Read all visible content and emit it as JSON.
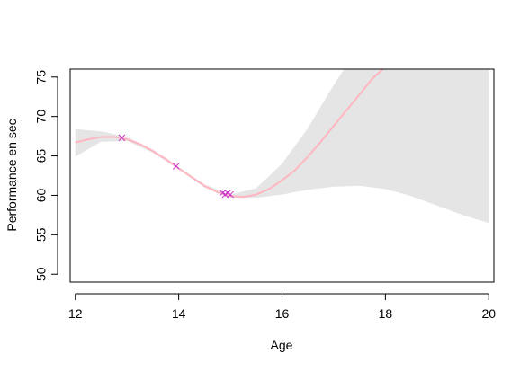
{
  "chart_data": {
    "type": "line",
    "title": "",
    "xlabel": "Age",
    "ylabel": "Performance en sec",
    "xlim": [
      11.9,
      20.1
    ],
    "ylim": [
      49,
      76
    ],
    "x_ticks": [
      12,
      14,
      16,
      18,
      20
    ],
    "y_ticks": [
      50,
      55,
      60,
      65,
      70,
      75
    ],
    "grid": false,
    "legend": "none",
    "colors": {
      "curve": "#ffb6c1",
      "band": "#e5e5e5",
      "points": "#cc33cc"
    },
    "fit_curve": {
      "x": [
        12.0,
        12.25,
        12.5,
        12.75,
        13.0,
        13.25,
        13.5,
        13.75,
        14.0,
        14.25,
        14.5,
        14.75,
        15.0,
        15.25,
        15.5,
        15.75,
        16.0,
        16.25,
        16.5,
        16.75,
        17.0,
        17.25,
        17.5,
        17.75,
        18.0,
        18.1
      ],
      "y": [
        66.7,
        67.1,
        67.4,
        67.4,
        67.1,
        66.5,
        65.6,
        64.6,
        63.4,
        62.3,
        61.2,
        60.4,
        59.9,
        59.8,
        60.1,
        60.8,
        61.9,
        63.2,
        64.9,
        66.8,
        68.8,
        70.8,
        72.8,
        74.8,
        76.3,
        76.5
      ]
    },
    "confidence_band": {
      "x": [
        12.0,
        12.5,
        13.0,
        13.5,
        14.0,
        14.5,
        15.0,
        15.5,
        16.0,
        16.5,
        17.0,
        17.5,
        18.0,
        18.5,
        19.0,
        19.5,
        20.0
      ],
      "upper": [
        68.4,
        68.1,
        67.4,
        65.8,
        63.6,
        61.4,
        60.1,
        60.9,
        64.0,
        68.5,
        74.0,
        79.0,
        84.0,
        88.0,
        91.0,
        93.0,
        95.0
      ],
      "lower": [
        64.9,
        66.8,
        66.9,
        65.4,
        63.3,
        61.0,
        59.7,
        59.7,
        60.1,
        60.7,
        61.1,
        61.2,
        60.8,
        59.9,
        58.7,
        57.5,
        56.5
      ]
    },
    "points": {
      "x": [
        12.9,
        13.95,
        14.85,
        14.9,
        14.95,
        15.0
      ],
      "y": [
        67.3,
        63.7,
        60.3,
        60.1,
        60.3,
        60.1
      ]
    }
  }
}
